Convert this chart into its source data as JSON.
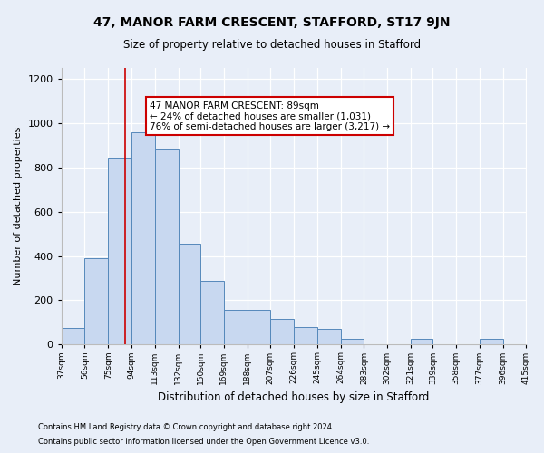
{
  "title": "47, MANOR FARM CRESCENT, STAFFORD, ST17 9JN",
  "subtitle": "Size of property relative to detached houses in Stafford",
  "xlabel": "Distribution of detached houses by size in Stafford",
  "ylabel": "Number of detached properties",
  "footnote1": "Contains HM Land Registry data © Crown copyright and database right 2024.",
  "footnote2": "Contains public sector information licensed under the Open Government Licence v3.0.",
  "bar_color": "#c8d8f0",
  "bar_edge_color": "#5588bb",
  "bins": [
    37,
    56,
    75,
    94,
    113,
    132,
    150,
    169,
    188,
    207,
    226,
    245,
    264,
    283,
    302,
    321,
    339,
    358,
    377,
    396,
    415
  ],
  "bar_heights": [
    75,
    390,
    845,
    960,
    880,
    455,
    290,
    155,
    155,
    115,
    80,
    70,
    25,
    0,
    0,
    25,
    0,
    0,
    25,
    0
  ],
  "bin_labels": [
    "37sqm",
    "56sqm",
    "75sqm",
    "94sqm",
    "113sqm",
    "132sqm",
    "150sqm",
    "169sqm",
    "188sqm",
    "207sqm",
    "226sqm",
    "245sqm",
    "264sqm",
    "283sqm",
    "302sqm",
    "321sqm",
    "339sqm",
    "358sqm",
    "377sqm",
    "396sqm",
    "415sqm"
  ],
  "property_size": 89,
  "vline_color": "#cc0000",
  "annotation_text": "47 MANOR FARM CRESCENT: 89sqm\n← 24% of detached houses are smaller (1,031)\n76% of semi-detached houses are larger (3,217) →",
  "annotation_box_color": "#ffffff",
  "annotation_box_edge": "#cc0000",
  "ylim": [
    0,
    1250
  ],
  "yticks": [
    0,
    200,
    400,
    600,
    800,
    1000,
    1200
  ],
  "background_color": "#e8eef8",
  "plot_background": "#e8eef8"
}
